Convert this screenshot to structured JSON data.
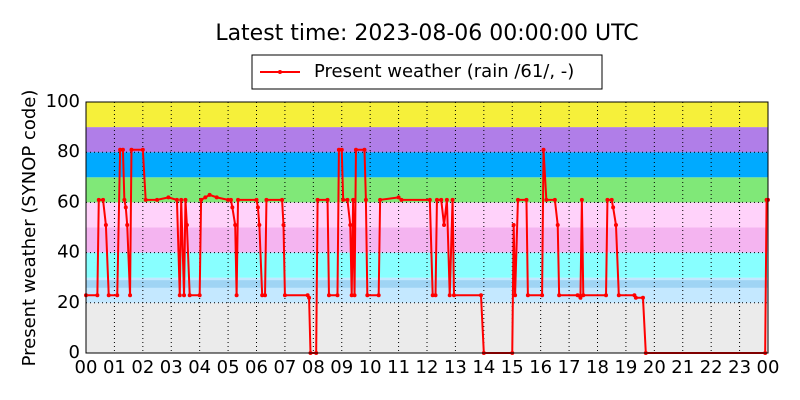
{
  "chart_data": {
    "type": "line",
    "title": "Latest time: 2023-08-06 00:00:00 UTC",
    "y_label": "Present weather (SYNOP code)",
    "legend": "upper center",
    "grid": true,
    "xlim": [
      0,
      24
    ],
    "xticks": [
      {
        "value": 0,
        "label": "00"
      },
      {
        "value": 1,
        "label": "01"
      },
      {
        "value": 2,
        "label": "02"
      },
      {
        "value": 3,
        "label": "03"
      },
      {
        "value": 4,
        "label": "04"
      },
      {
        "value": 5,
        "label": "05"
      },
      {
        "value": 6,
        "label": "06"
      },
      {
        "value": 7,
        "label": "07"
      },
      {
        "value": 8,
        "label": "08"
      },
      {
        "value": 9,
        "label": "09"
      },
      {
        "value": 10,
        "label": "10"
      },
      {
        "value": 11,
        "label": "11"
      },
      {
        "value": 12,
        "label": "12"
      },
      {
        "value": 13,
        "label": "13"
      },
      {
        "value": 14,
        "label": "14"
      },
      {
        "value": 15,
        "label": "15"
      },
      {
        "value": 16,
        "label": "16"
      },
      {
        "value": 17,
        "label": "17"
      },
      {
        "value": 18,
        "label": "18"
      },
      {
        "value": 19,
        "label": "19"
      },
      {
        "value": 20,
        "label": "20"
      },
      {
        "value": 21,
        "label": "21"
      },
      {
        "value": 22,
        "label": "22"
      },
      {
        "value": 23,
        "label": "23"
      },
      {
        "value": 24,
        "label": "00"
      }
    ],
    "ylim": [
      0,
      100
    ],
    "yticks": [
      0,
      20,
      40,
      60,
      80,
      100
    ],
    "bands": [
      {
        "from": 0,
        "to": 20,
        "color": "#ebebeb"
      },
      {
        "from": 20,
        "to": 30,
        "color": "#c4e8ff"
      },
      {
        "from": 26,
        "to": 29,
        "color": "#9fd4f4"
      },
      {
        "from": 30,
        "to": 40,
        "color": "#88ffff"
      },
      {
        "from": 40,
        "to": 50,
        "color": "#f4b4f0"
      },
      {
        "from": 50,
        "to": 60,
        "color": "#ffd2fa"
      },
      {
        "from": 60,
        "to": 70,
        "color": "#80e878"
      },
      {
        "from": 70,
        "to": 80,
        "color": "#00aaff"
      },
      {
        "from": 80,
        "to": 90,
        "color": "#b07ee8"
      },
      {
        "from": 90,
        "to": 100,
        "color": "#f6f03a"
      }
    ],
    "x": [
      0,
      0.4,
      0.45,
      0.6,
      0.7,
      0.8,
      1.1,
      1.2,
      1.3,
      1.35,
      1.4,
      1.45,
      1.55,
      1.6,
      2.0,
      2.1,
      2.5,
      2.9,
      3.2,
      3.3,
      3.35,
      3.45,
      3.5,
      3.55,
      3.65,
      4.0,
      4.05,
      4.2,
      4.35,
      4.6,
      5.0,
      5.1,
      5.15,
      5.25,
      5.3,
      5.35,
      6.0,
      6.05,
      6.1,
      6.2,
      6.3,
      6.35,
      6.9,
      6.95,
      7.0,
      7.8,
      7.85,
      7.9,
      8.1,
      8.15,
      8.5,
      8.55,
      8.85,
      8.9,
      9.0,
      9.05,
      9.2,
      9.3,
      9.35,
      9.4,
      9.45,
      9.5,
      9.8,
      9.85,
      9.9,
      10.3,
      10.35,
      11.0,
      11.1,
      12.1,
      12.2,
      12.3,
      12.35,
      12.5,
      12.6,
      12.7,
      12.8,
      12.9,
      12.95,
      13.9,
      14.0,
      15.0,
      15.05,
      15.1,
      15.2,
      15.5,
      15.55,
      16.05,
      16.1,
      16.2,
      16.5,
      16.6,
      16.65,
      17.3,
      17.4,
      17.45,
      17.5,
      18.3,
      18.35,
      18.5,
      18.55,
      18.65,
      18.75,
      19.3,
      19.35,
      19.6,
      19.7,
      23.9,
      23.95,
      24
    ],
    "series": [
      {
        "name": "Present weather (rain /61/, -)",
        "color": "#ff0000",
        "values": [
          23,
          23,
          61,
          61,
          51,
          23,
          23,
          81,
          81,
          61,
          58,
          51,
          23,
          81,
          81,
          61,
          61,
          62,
          61,
          23,
          61,
          23,
          61,
          51,
          23,
          23,
          61,
          62,
          63,
          62,
          61,
          61,
          58,
          51,
          23,
          61,
          61,
          58,
          51,
          23,
          23,
          61,
          61,
          51,
          23,
          23,
          22,
          0,
          0,
          61,
          61,
          23,
          23,
          81,
          81,
          61,
          61,
          51,
          23,
          61,
          23,
          81,
          81,
          61,
          23,
          23,
          61,
          62,
          61,
          61,
          23,
          23,
          61,
          61,
          51,
          61,
          23,
          61,
          23,
          23,
          0,
          0,
          51,
          23,
          61,
          61,
          23,
          23,
          81,
          61,
          61,
          51,
          23,
          23,
          22,
          61,
          23,
          23,
          61,
          61,
          58,
          51,
          23,
          23,
          22,
          22,
          0,
          0,
          61,
          61
        ]
      }
    ]
  }
}
